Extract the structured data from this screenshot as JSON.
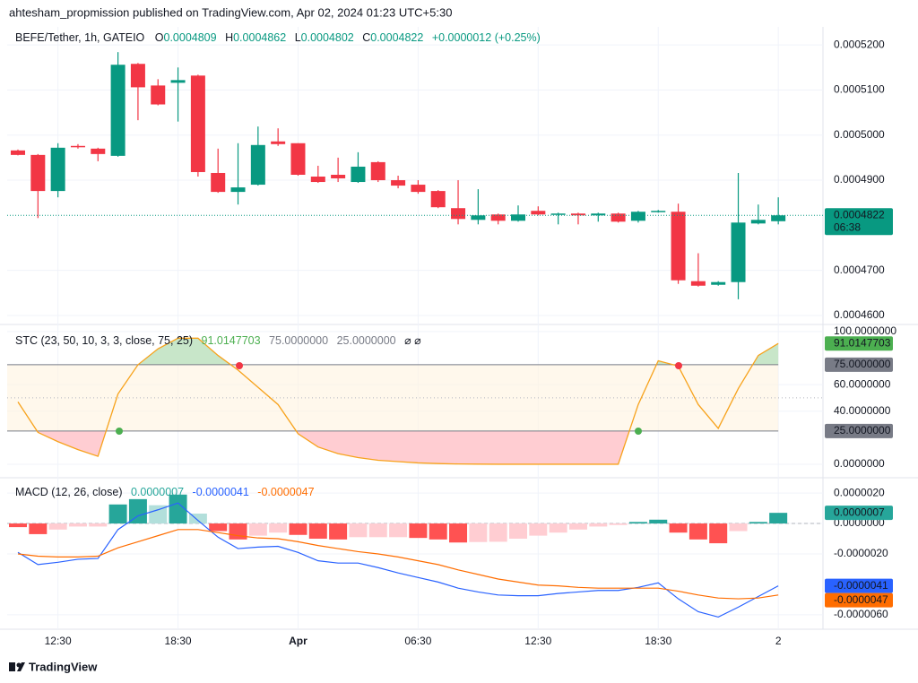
{
  "page": {
    "publisher": "ahtesham_propmission published on TradingView.com, Apr 02, 2024 01:23 UTC+5:30",
    "logo": "TradingView"
  },
  "chart_data": [
    {
      "type": "candlestick",
      "title": "BEFE/Tether, 1h, GATEIO",
      "ohlc_labels": [
        "O",
        "H",
        "L",
        "C"
      ],
      "change": "+0.0000012 (+0.25%)",
      "countdown": "06:38",
      "categories": [
        null,
        null,
        "12:30",
        null,
        null,
        null,
        null,
        null,
        "18:30",
        null,
        null,
        null,
        null,
        null,
        "Apr",
        null,
        null,
        null,
        null,
        null,
        "06:30",
        null,
        null,
        null,
        null,
        null,
        "12:30",
        null,
        null,
        null,
        null,
        null,
        "18:30",
        null,
        null,
        null,
        null,
        null,
        "2"
      ],
      "open": [
        0.0004966,
        0.0004956,
        0.0004876,
        0.0004976,
        0.000497,
        0.0004954,
        0.0005158,
        0.000511,
        0.0005116,
        0.0005132,
        0.0004916,
        0.0004874,
        0.000489,
        0.0004986,
        0.0004982,
        0.0004908,
        0.0004912,
        0.0004896,
        0.000494,
        0.00049,
        0.000489,
        0.0004876,
        0.0004838,
        0.0004812,
        0.0004824,
        0.000481,
        0.0004832,
        0.0004824,
        0.0004826,
        0.0004822,
        0.0004826,
        0.000481,
        0.000483,
        0.000483,
        0.0004676,
        0.0004668,
        0.0004674,
        0.0004804,
        0.0004809
      ],
      "high": [
        0.0004968,
        0.0004958,
        0.0004982,
        0.000498,
        0.0004972,
        0.0005184,
        0.000516,
        0.0005124,
        0.000515,
        0.0005134,
        0.000497,
        0.0004982,
        0.0005019,
        0.0005015,
        0.0004982,
        0.0004932,
        0.000495,
        0.0004962,
        0.0004942,
        0.000491,
        0.00049,
        0.0004878,
        0.00049,
        0.000488,
        0.0004826,
        0.0004844,
        0.0004842,
        0.0004828,
        0.0004828,
        0.0004828,
        0.0004828,
        0.0004832,
        0.0004834,
        0.0004848,
        0.0004738,
        0.0004676,
        0.0004916,
        0.0004846,
        0.0004862
      ],
      "low": [
        0.0004955,
        0.0004816,
        0.0004862,
        0.000497,
        0.0004942,
        0.0004952,
        0.0005033,
        0.0005066,
        0.000503,
        0.0004908,
        0.0004872,
        0.0004846,
        0.0004888,
        0.0004976,
        0.000491,
        0.0004894,
        0.0004896,
        0.0004894,
        0.0004896,
        0.0004882,
        0.000487,
        0.0004838,
        0.0004802,
        0.0004802,
        0.0004802,
        0.0004808,
        0.0004822,
        0.0004802,
        0.0004802,
        0.0004808,
        0.0004806,
        0.0004806,
        0.0004828,
        0.000467,
        0.0004664,
        0.0004666,
        0.0004636,
        0.0004802,
        0.0004802
      ],
      "close": [
        0.0004956,
        0.0004876,
        0.0004972,
        0.0004973,
        0.0004958,
        0.0005156,
        0.0005106,
        0.0005068,
        0.0005122,
        0.0004918,
        0.0004874,
        0.0004884,
        0.0004978,
        0.000498,
        0.0004912,
        0.0004896,
        0.0004904,
        0.000493,
        0.00049,
        0.0004888,
        0.0004874,
        0.000484,
        0.0004814,
        0.0004822,
        0.000481,
        0.0004824,
        0.0004824,
        0.0004826,
        0.0004822,
        0.0004826,
        0.0004808,
        0.000483,
        0.0004832,
        0.0004678,
        0.0004666,
        0.0004674,
        0.0004806,
        0.0004812,
        0.0004822
      ],
      "up_color": "#089981",
      "down_color": "#f23645",
      "ylim": [
        0.000458,
        0.000524
      ],
      "yticks": [
        {
          "value": 0.00046,
          "label": "0.0004600"
        },
        {
          "value": 0.00047,
          "label": "0.0004700"
        },
        {
          "value": 0.00049,
          "label": "0.0004900"
        },
        {
          "value": 0.0005,
          "label": "0.0005000"
        },
        {
          "value": 0.00051,
          "label": "0.0005100"
        },
        {
          "value": 0.00052,
          "label": "0.0005200"
        }
      ],
      "grid": true
    },
    {
      "type": "line",
      "title": "STC (23, 50, 10, 3, 3, close, 75, 25)",
      "status": "⌀ ⌀",
      "series": [
        {
          "color": "#f7a21b",
          "values": [
            47,
            24,
            17,
            11,
            6,
            53,
            75,
            87,
            95,
            95,
            82,
            71,
            58,
            45,
            23,
            13,
            8,
            5,
            3,
            2,
            1,
            0.5,
            0.2,
            0.1,
            0,
            0,
            0,
            0,
            0,
            0,
            0,
            45,
            78,
            74,
            45,
            27,
            57,
            82,
            91.0147703
          ]
        }
      ],
      "value_color": "#4caf50",
      "levels": [
        {
          "value": 75,
          "label": "75.0000000"
        },
        {
          "value": 25,
          "label": "25.0000000"
        }
      ],
      "level_color": "#787b86",
      "midline": 50,
      "above_color": "#c8e6c9",
      "below_color": "#ffcdd2",
      "band_color": "#fff3e0",
      "ylim": [
        -9.5,
        104
      ],
      "yticks": [
        {
          "value": 0,
          "label": "0.0000000"
        },
        {
          "value": 40,
          "label": "40.0000000"
        },
        {
          "value": 60,
          "label": "60.0000000"
        },
        {
          "value": 100,
          "label": "100.0000000"
        }
      ]
    },
    {
      "type": "macd",
      "title": "MACD (12, 26, close)",
      "series": [
        {
          "kind": "histogram",
          "last_label": "0.0000007",
          "color": "#26a69a",
          "values": [
            -2.4e-07,
            -7e-07,
            -4e-07,
            -2e-07,
            -2e-07,
            1.25e-06,
            1.6e-06,
            1.2e-06,
            1.9e-06,
            6.5e-07,
            -5e-07,
            -1.05e-06,
            -8e-07,
            -6e-07,
            -7.5e-07,
            -1e-06,
            -1.05e-06,
            -9e-07,
            -9e-07,
            -9e-07,
            -9.5e-07,
            -1.05e-06,
            -1.25e-06,
            -1.22e-06,
            -1.2e-06,
            -1e-06,
            -8e-07,
            -6e-07,
            -4e-07,
            -2e-07,
            -1e-07,
            1e-07,
            2.5e-07,
            -6e-07,
            -1.05e-06,
            -1.3e-06,
            -5e-07,
            1e-07,
            7e-07
          ],
          "colors": [
            "#ff5252",
            "#ff5252",
            "#ffcdd2",
            "#ffcdd2",
            "#ffcdd2",
            "#26a69a",
            "#26a69a",
            "#b2dfdb",
            "#26a69a",
            "#b2dfdb",
            "#ff5252",
            "#ff5252",
            "#ffcdd2",
            "#ffcdd2",
            "#ff5252",
            "#ff5252",
            "#ff5252",
            "#ffcdd2",
            "#ffcdd2",
            "#ffcdd2",
            "#ff5252",
            "#ff5252",
            "#ff5252",
            "#ffcdd2",
            "#ffcdd2",
            "#ffcdd2",
            "#ffcdd2",
            "#ffcdd2",
            "#ffcdd2",
            "#ffcdd2",
            "#ffcdd2",
            "#26a69a",
            "#26a69a",
            "#ff5252",
            "#ff5252",
            "#ff5252",
            "#ffcdd2",
            "#26a69a",
            "#26a69a"
          ]
        },
        {
          "kind": "line",
          "color": "#2962ff",
          "values": [
            -1.9e-06,
            -2.7e-06,
            -2.55e-06,
            -2.35e-06,
            -2.3e-06,
            -4e-07,
            5e-07,
            9e-07,
            1.35e-06,
            2e-07,
            -9e-07,
            -1.65e-06,
            -1.55e-06,
            -1.5e-06,
            -1.9e-06,
            -2.45e-06,
            -2.6e-06,
            -2.6e-06,
            -2.9e-06,
            -3.25e-06,
            -3.55e-06,
            -3.85e-06,
            -4.25e-06,
            -4.5e-06,
            -4.7e-06,
            -4.75e-06,
            -4.75e-06,
            -4.6e-06,
            -4.5e-06,
            -4.4e-06,
            -4.4e-06,
            -4.2e-06,
            -3.9e-06,
            -4.95e-06,
            -5.8e-06,
            -6.15e-06,
            -5.5e-06,
            -4.8e-06,
            -4.1e-06
          ]
        },
        {
          "kind": "line",
          "color": "#ff6d00",
          "values": [
            -2e-06,
            -2.15e-06,
            -2.2e-06,
            -2.2e-06,
            -2.15e-06,
            -1.6e-06,
            -1.2e-06,
            -8e-07,
            -4e-07,
            -4e-07,
            -6e-07,
            -8e-07,
            -9.5e-07,
            -1e-06,
            -1.2e-06,
            -1.45e-06,
            -1.65e-06,
            -1.85e-06,
            -2e-06,
            -2.2e-06,
            -2.45e-06,
            -2.7e-06,
            -3.05e-06,
            -3.35e-06,
            -3.65e-06,
            -3.85e-06,
            -4.05e-06,
            -4.1e-06,
            -4.2e-06,
            -4.25e-06,
            -4.25e-06,
            -4.25e-06,
            -4.25e-06,
            -4.45e-06,
            -4.7e-06,
            -4.9e-06,
            -4.95e-06,
            -4.9e-06,
            -4.7e-06
          ]
        }
      ],
      "ylim": [
        -6.95e-06,
        2.83e-06
      ],
      "yticks": [
        {
          "value": -6e-06,
          "label": "-0.0000060"
        },
        {
          "value": -2e-06,
          "label": "-0.0000020"
        },
        {
          "value": 0,
          "label": "0.0000000"
        },
        {
          "value": 2e-06,
          "label": "0.0000020"
        }
      ]
    }
  ]
}
